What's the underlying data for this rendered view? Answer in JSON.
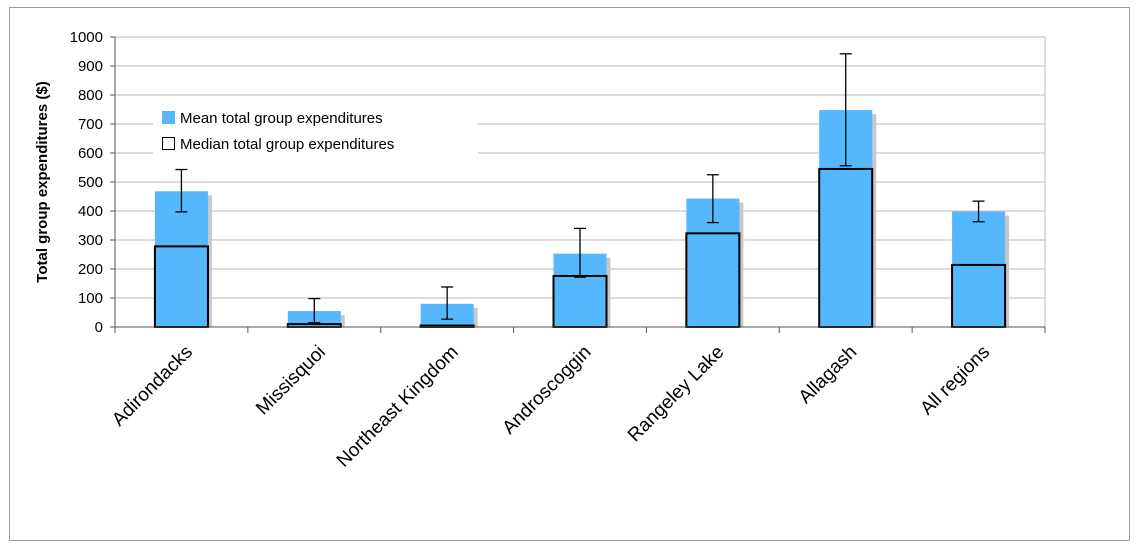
{
  "chart_data": {
    "type": "bar",
    "title": "",
    "xlabel": "",
    "ylabel": "Total group expenditures ($)",
    "ylim": [
      0,
      1000
    ],
    "yticks": [
      0,
      100,
      200,
      300,
      400,
      500,
      600,
      700,
      800,
      900,
      1000
    ],
    "grid": true,
    "legend_position": "upper-left",
    "categories": [
      "Adirondacks",
      "Missisquoi",
      "Northeast Kingdom",
      "Androscoggin",
      "Rangeley Lake",
      "Allagash",
      "All regions"
    ],
    "series": [
      {
        "name": "Mean total group expenditures",
        "color": "#55b8ff",
        "values": [
          468,
          55,
          80,
          253,
          443,
          748,
          398
        ],
        "error_low": [
          397,
          15,
          27,
          172,
          360,
          556,
          363
        ],
        "error_high": [
          543,
          98,
          138,
          340,
          525,
          942,
          434
        ]
      },
      {
        "name": "Median total group expenditures",
        "color": "#ffffff",
        "values": [
          278,
          10,
          5,
          176,
          323,
          545,
          214
        ]
      }
    ]
  }
}
